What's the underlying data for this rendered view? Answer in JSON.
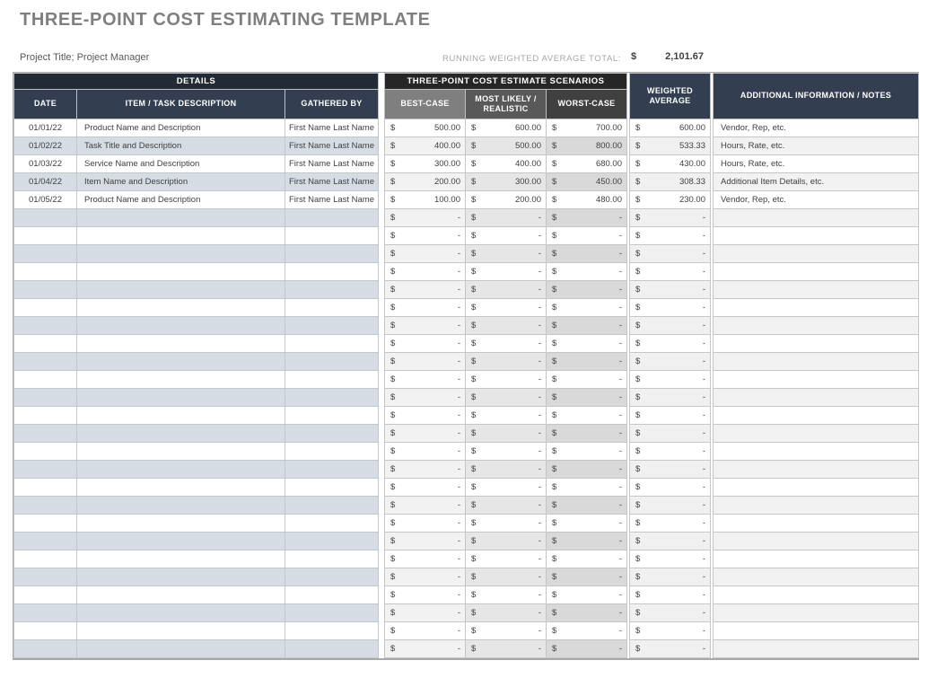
{
  "page": {
    "title": "THREE-POINT COST ESTIMATING TEMPLATE",
    "project_label": "Project Title; Project Manager",
    "running_total": {
      "label": "RUNNING WEIGHTED AVERAGE TOTAL:",
      "currency": "$",
      "value": "2,101.67"
    }
  },
  "table": {
    "group_headers": {
      "details": "DETAILS",
      "scenarios": "THREE-POINT COST ESTIMATE SCENARIOS"
    },
    "column_headers": {
      "date": "DATE",
      "item": "ITEM / TASK DESCRIPTION",
      "gathered_by": "GATHERED BY",
      "best_case": "BEST-CASE",
      "most_likely": "MOST LIKELY / REALISTIC",
      "worst_case": "WORST-CASE",
      "weighted_average": "WEIGHTED AVERAGE",
      "notes": "ADDITIONAL INFORMATION / NOTES"
    },
    "currency": "$",
    "empty_value": "-",
    "rows": [
      {
        "date": "01/01/22",
        "item": "Product Name and Description",
        "gathered_by": "First Name Last Name",
        "best": "500.00",
        "likely": "600.00",
        "worst": "700.00",
        "weighted": "600.00",
        "notes": "Vendor, Rep, etc."
      },
      {
        "date": "01/02/22",
        "item": "Task Title and Description",
        "gathered_by": "First Name Last Name",
        "best": "400.00",
        "likely": "500.00",
        "worst": "800.00",
        "weighted": "533.33",
        "notes": "Hours, Rate, etc."
      },
      {
        "date": "01/03/22",
        "item": "Service Name and Description",
        "gathered_by": "First Name Last Name",
        "best": "300.00",
        "likely": "400.00",
        "worst": "680.00",
        "weighted": "430.00",
        "notes": "Hours, Rate, etc."
      },
      {
        "date": "01/04/22",
        "item": "Item Name and Description",
        "gathered_by": "First Name Last Name",
        "best": "200.00",
        "likely": "300.00",
        "worst": "450.00",
        "weighted": "308.33",
        "notes": "Additional Item Details, etc."
      },
      {
        "date": "01/05/22",
        "item": "Product Name and Description",
        "gathered_by": "First Name Last Name",
        "best": "100.00",
        "likely": "200.00",
        "worst": "480.00",
        "weighted": "230.00",
        "notes": "Vendor, Rep, etc."
      }
    ],
    "empty_row_count": 25
  },
  "colors": {
    "details_bar": "#222B35",
    "scenarios_bar": "#262626",
    "slate_header": "#333F50",
    "best_header": "#7F7F7F",
    "likely_header": "#595959",
    "worst_header": "#404040",
    "stripe_blue": "#D6DCE4",
    "stripe_best": "#F2F2F2",
    "stripe_likely": "#E7E6E6",
    "stripe_worst": "#D9D9D9",
    "stripe_weighted": "#F0F0F0",
    "stripe_notes": "#F2F2F2",
    "title_text": "#7F7F7F",
    "body_text": "#404040"
  }
}
